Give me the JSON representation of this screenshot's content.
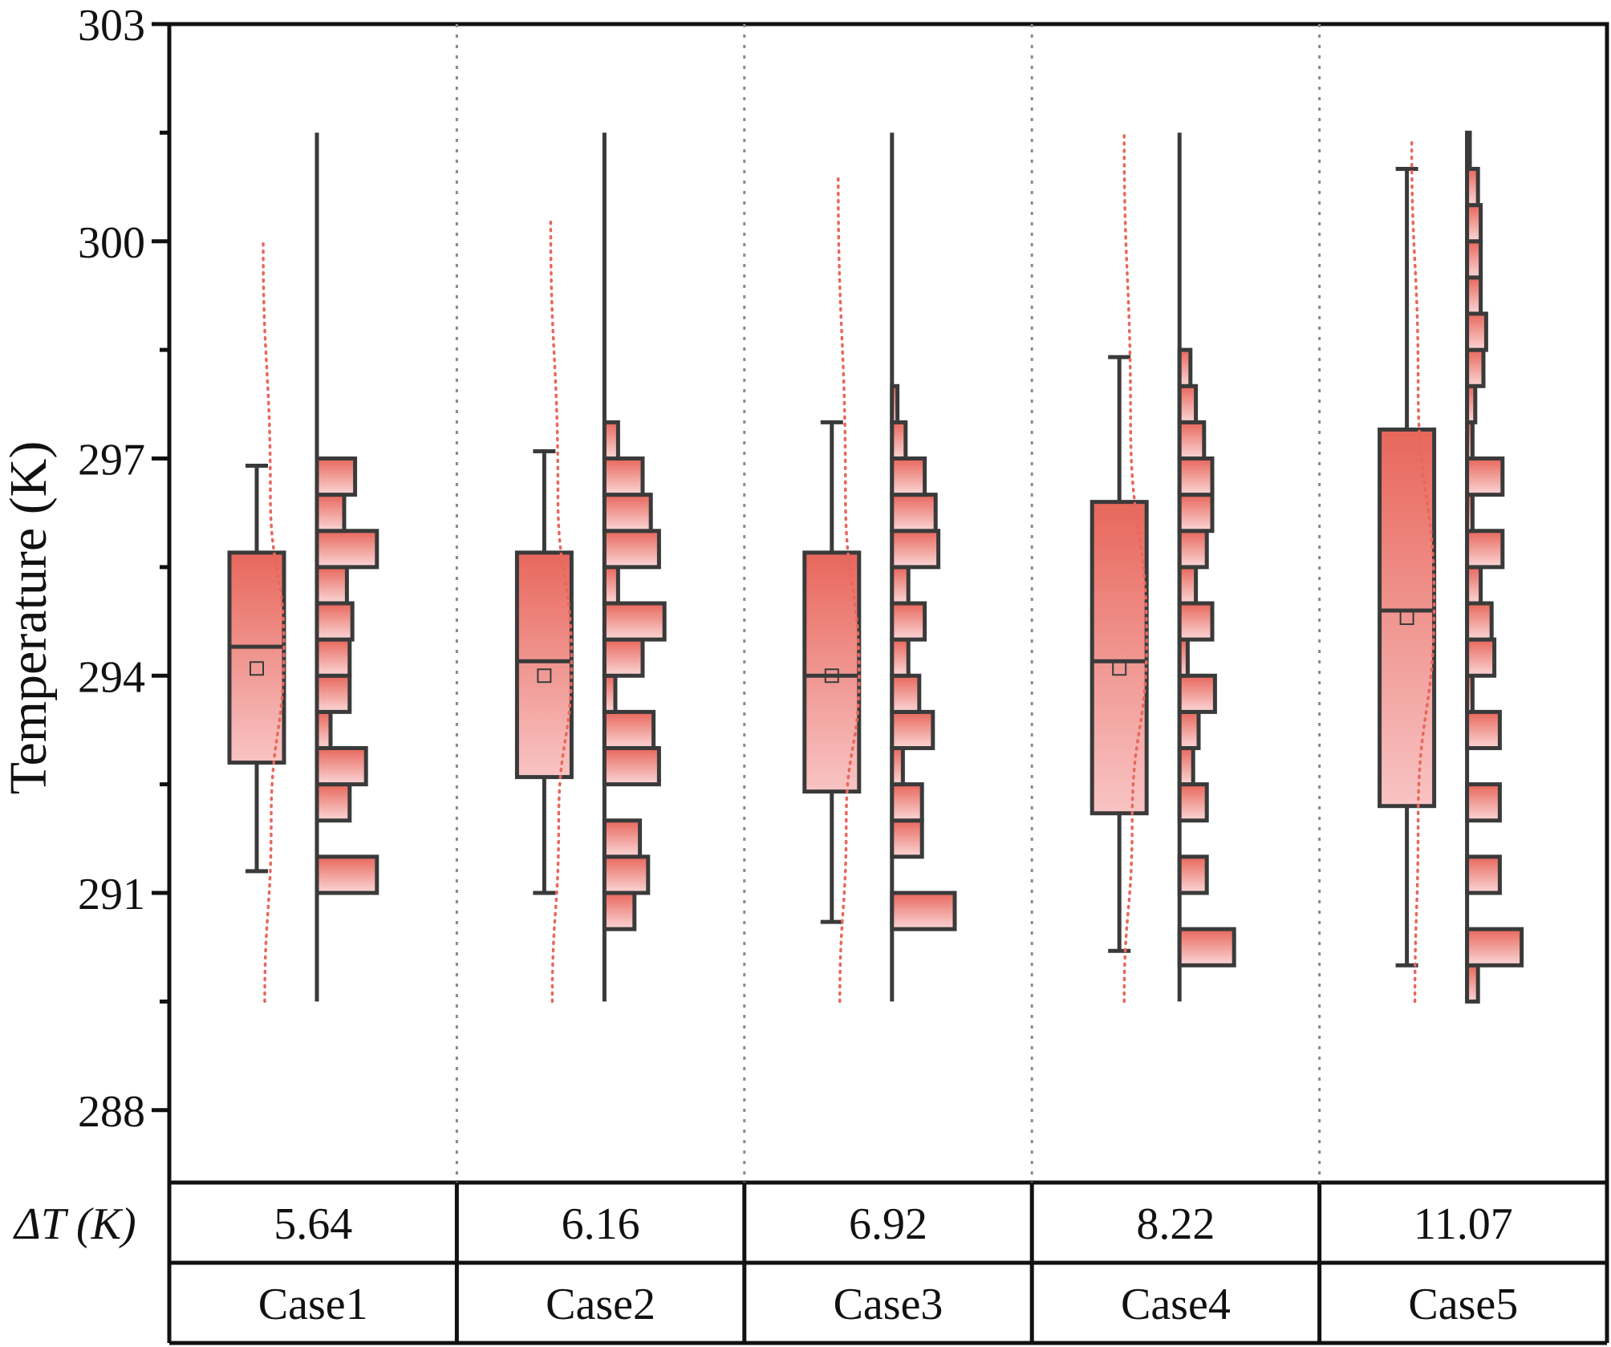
{
  "chart_data": {
    "type": "box",
    "ylabel": "Temperature (K)",
    "ylim": [
      287,
      303
    ],
    "yticks": [
      288,
      291,
      294,
      297,
      300,
      303
    ],
    "grid": "vertical dotted separators between cases",
    "colors": {
      "box_top": "#e8675c",
      "box_bottom": "#f8c4c4",
      "outline": "#3a3a3a",
      "curve": "#e8675c"
    },
    "table": {
      "rows": [
        {
          "label": "ΔT (K)",
          "values": [
            "5.64",
            "6.16",
            "6.92",
            "8.22",
            "11.07"
          ]
        },
        {
          "label": "",
          "values": [
            "Case1",
            "Case2",
            "Case3",
            "Case4",
            "Case5"
          ]
        }
      ]
    },
    "series": [
      {
        "category": "Case1",
        "whisker_low": 291.3,
        "q1": 292.8,
        "median": 294.4,
        "q3": 295.7,
        "whisker_high": 296.9,
        "mean": 294.1,
        "range": [
          289.5,
          301.5
        ],
        "hist_bins": [
          [
            291.0,
            291.5,
            2.2
          ],
          [
            292.0,
            292.5,
            1.2
          ],
          [
            292.5,
            293.0,
            1.8
          ],
          [
            293.0,
            293.5,
            0.5
          ],
          [
            293.5,
            294.0,
            1.2
          ],
          [
            294.0,
            294.5,
            1.2
          ],
          [
            294.5,
            295.0,
            1.3
          ],
          [
            295.0,
            295.5,
            1.1
          ],
          [
            295.5,
            296.0,
            2.2
          ],
          [
            296.0,
            296.5,
            1.0
          ],
          [
            296.5,
            297.0,
            1.4
          ]
        ],
        "curve": [
          [
            289.5,
            0.0
          ],
          [
            292.0,
            0.4
          ],
          [
            294.4,
            1.2
          ],
          [
            296.5,
            0.35
          ],
          [
            300.0,
            -0.1
          ]
        ]
      },
      {
        "category": "Case2",
        "whisker_low": 291.0,
        "q1": 292.6,
        "median": 294.2,
        "q3": 295.7,
        "whisker_high": 297.1,
        "mean": 294.0,
        "range": [
          289.5,
          301.5
        ],
        "hist_bins": [
          [
            290.5,
            291.0,
            1.1
          ],
          [
            291.0,
            291.5,
            1.6
          ],
          [
            291.5,
            292.0,
            1.3
          ],
          [
            292.5,
            293.0,
            2.0
          ],
          [
            293.0,
            293.5,
            1.8
          ],
          [
            293.5,
            294.0,
            0.4
          ],
          [
            294.0,
            294.5,
            1.4
          ],
          [
            294.5,
            295.0,
            2.2
          ],
          [
            295.0,
            295.5,
            0.5
          ],
          [
            295.5,
            296.0,
            2.0
          ],
          [
            296.0,
            296.5,
            1.7
          ],
          [
            296.5,
            297.0,
            1.4
          ],
          [
            297.0,
            297.5,
            0.5
          ]
        ],
        "curve": [
          [
            289.5,
            0.0
          ],
          [
            292.0,
            0.4
          ],
          [
            294.2,
            1.2
          ],
          [
            296.5,
            0.35
          ],
          [
            300.3,
            -0.1
          ]
        ]
      },
      {
        "category": "Case3",
        "whisker_low": 290.6,
        "q1": 292.4,
        "median": 294.0,
        "q3": 295.7,
        "whisker_high": 297.5,
        "mean": 294.0,
        "range": [
          289.5,
          301.5
        ],
        "hist_bins": [
          [
            290.5,
            291.0,
            2.3
          ],
          [
            291.5,
            292.0,
            1.1
          ],
          [
            292.0,
            292.5,
            1.1
          ],
          [
            292.5,
            293.0,
            0.4
          ],
          [
            293.0,
            293.5,
            1.5
          ],
          [
            293.5,
            294.0,
            1.0
          ],
          [
            294.0,
            294.5,
            0.6
          ],
          [
            294.5,
            295.0,
            1.2
          ],
          [
            295.0,
            295.5,
            0.6
          ],
          [
            295.5,
            296.0,
            1.7
          ],
          [
            296.0,
            296.5,
            1.6
          ],
          [
            296.5,
            297.0,
            1.2
          ],
          [
            297.0,
            297.5,
            0.5
          ],
          [
            297.5,
            298.0,
            0.2
          ]
        ],
        "curve": [
          [
            289.5,
            0.0
          ],
          [
            292.0,
            0.4
          ],
          [
            294.0,
            1.2
          ],
          [
            296.5,
            0.35
          ],
          [
            300.9,
            -0.1
          ]
        ]
      },
      {
        "category": "Case4",
        "whisker_low": 290.2,
        "q1": 292.1,
        "median": 294.2,
        "q3": 296.4,
        "whisker_high": 298.4,
        "mean": 294.1,
        "range": [
          289.5,
          301.5
        ],
        "hist_bins": [
          [
            290.0,
            290.5,
            2.0
          ],
          [
            291.0,
            291.5,
            1.0
          ],
          [
            292.0,
            292.5,
            1.0
          ],
          [
            292.5,
            293.0,
            0.5
          ],
          [
            293.0,
            293.5,
            0.7
          ],
          [
            293.5,
            294.0,
            1.3
          ],
          [
            294.0,
            294.5,
            0.3
          ],
          [
            294.5,
            295.0,
            1.2
          ],
          [
            295.0,
            295.5,
            0.6
          ],
          [
            295.5,
            296.0,
            1.0
          ],
          [
            296.0,
            296.5,
            1.2
          ],
          [
            296.5,
            297.0,
            1.2
          ],
          [
            297.0,
            297.5,
            0.9
          ],
          [
            297.5,
            298.0,
            0.6
          ],
          [
            298.0,
            298.5,
            0.4
          ]
        ],
        "curve": [
          [
            289.5,
            -0.2
          ],
          [
            292.0,
            0.3
          ],
          [
            294.5,
            1.2
          ],
          [
            297.5,
            0.2
          ],
          [
            301.5,
            -0.2
          ]
        ]
      },
      {
        "category": "Case5",
        "whisker_low": 290.0,
        "q1": 292.2,
        "median": 294.9,
        "q3": 297.4,
        "whisker_high": 301.0,
        "mean": 294.8,
        "range": [
          289.5,
          301.5
        ],
        "hist_bins": [
          [
            289.5,
            290.0,
            0.4
          ],
          [
            290.0,
            290.5,
            2.0
          ],
          [
            291.0,
            291.5,
            1.2
          ],
          [
            292.0,
            292.5,
            1.2
          ],
          [
            293.0,
            293.5,
            1.2
          ],
          [
            293.5,
            294.0,
            0.2
          ],
          [
            294.0,
            294.5,
            1.0
          ],
          [
            294.5,
            295.0,
            0.9
          ],
          [
            295.0,
            295.5,
            0.5
          ],
          [
            295.5,
            296.0,
            1.3
          ],
          [
            296.0,
            296.5,
            0.2
          ],
          [
            296.5,
            297.0,
            1.3
          ],
          [
            297.0,
            297.5,
            0.2
          ],
          [
            297.5,
            298.0,
            0.3
          ],
          [
            298.0,
            298.5,
            0.6
          ],
          [
            298.5,
            299.0,
            0.7
          ],
          [
            299.0,
            299.5,
            0.5
          ],
          [
            299.5,
            300.0,
            0.5
          ],
          [
            300.0,
            300.5,
            0.5
          ],
          [
            300.5,
            301.0,
            0.4
          ],
          [
            301.0,
            301.5,
            0.1
          ]
        ],
        "curve": [
          [
            289.5,
            0.0
          ],
          [
            292.0,
            0.2
          ],
          [
            295.0,
            1.2
          ],
          [
            298.0,
            0.2
          ],
          [
            301.4,
            -0.2
          ]
        ]
      }
    ]
  }
}
